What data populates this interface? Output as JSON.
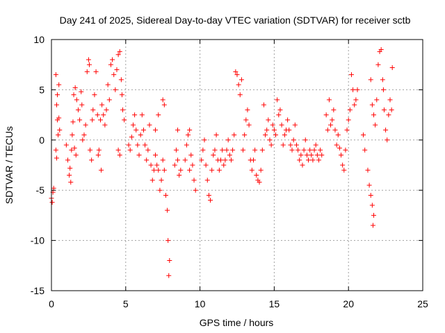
{
  "chart_data": {
    "type": "scatter",
    "title": "Day 241 of 2025, Sidereal Day-to-day VTEC variation (SDTVAR) for receiver sctb",
    "xlabel": "GPS time / hours",
    "ylabel": "SDTVAR / TECUs",
    "xlim": [
      0,
      25
    ],
    "ylim": [
      -15,
      10
    ],
    "xticks": [
      0,
      5,
      10,
      15,
      20,
      25
    ],
    "yticks": [
      10,
      5,
      0,
      -5,
      -10,
      -15
    ],
    "grid": true,
    "marker": "+",
    "colors": {
      "points": "#ff0000",
      "axes": "#000000",
      "grid": "#a0a0a0"
    },
    "series": [
      {
        "name": "SDTVAR",
        "points": [
          [
            0.0,
            -5.8
          ],
          [
            0.05,
            -6.2
          ],
          [
            0.1,
            -5.2
          ],
          [
            0.15,
            -4.8
          ],
          [
            0.3,
            6.5
          ],
          [
            0.35,
            3.5
          ],
          [
            0.4,
            2.0
          ],
          [
            0.45,
            0.5
          ],
          [
            0.5,
            2.2
          ],
          [
            0.55,
            1.0
          ],
          [
            0.3,
            -1.0
          ],
          [
            0.35,
            -1.8
          ],
          [
            0.4,
            4.5
          ],
          [
            0.5,
            5.5
          ],
          [
            1.0,
            -0.5
          ],
          [
            1.1,
            -2.0
          ],
          [
            1.2,
            -3.5
          ],
          [
            1.3,
            -4.2
          ],
          [
            1.25,
            -2.8
          ],
          [
            1.35,
            -1.0
          ],
          [
            1.4,
            0.5
          ],
          [
            1.45,
            1.8
          ],
          [
            1.5,
            4.5
          ],
          [
            1.6,
            5.2
          ],
          [
            1.7,
            4.0
          ],
          [
            1.8,
            3.0
          ],
          [
            1.9,
            2.0
          ],
          [
            2.0,
            4.8
          ],
          [
            2.05,
            3.5
          ],
          [
            1.55,
            -0.8
          ],
          [
            1.65,
            -1.5
          ],
          [
            2.1,
            0.0
          ],
          [
            2.2,
            0.5
          ],
          [
            2.3,
            1.5
          ],
          [
            2.4,
            6.8
          ],
          [
            2.5,
            8.0
          ],
          [
            2.55,
            7.5
          ],
          [
            2.6,
            -1.0
          ],
          [
            2.7,
            -2.0
          ],
          [
            2.75,
            2.0
          ],
          [
            2.8,
            3.0
          ],
          [
            2.9,
            4.5
          ],
          [
            3.0,
            6.8
          ],
          [
            3.1,
            2.5
          ],
          [
            3.15,
            -1.5
          ],
          [
            3.2,
            -1.0
          ],
          [
            3.3,
            2.0
          ],
          [
            3.35,
            -3.0
          ],
          [
            3.4,
            3.5
          ],
          [
            3.5,
            2.5
          ],
          [
            3.6,
            1.5
          ],
          [
            3.7,
            3.0
          ],
          [
            3.8,
            5.5
          ],
          [
            3.9,
            4.0
          ],
          [
            4.0,
            7.5
          ],
          [
            4.1,
            8.0
          ],
          [
            4.2,
            6.5
          ],
          [
            4.3,
            5.0
          ],
          [
            4.4,
            7.0
          ],
          [
            4.5,
            8.5
          ],
          [
            4.6,
            8.8
          ],
          [
            4.7,
            6.0
          ],
          [
            4.75,
            4.5
          ],
          [
            4.8,
            3.0
          ],
          [
            4.9,
            2.0
          ],
          [
            4.6,
            -1.5
          ],
          [
            4.5,
            -1.0
          ],
          [
            5.2,
            -0.5
          ],
          [
            5.3,
            -1.0
          ],
          [
            5.4,
            0.3
          ],
          [
            5.5,
            1.5
          ],
          [
            5.6,
            2.5
          ],
          [
            5.7,
            1.0
          ],
          [
            5.8,
            -0.5
          ],
          [
            5.9,
            -1.5
          ],
          [
            6.0,
            0.5
          ],
          [
            6.1,
            2.5
          ],
          [
            6.2,
            1.0
          ],
          [
            6.3,
            -0.5
          ],
          [
            6.4,
            -2.0
          ],
          [
            6.5,
            -1.0
          ],
          [
            6.6,
            1.5
          ],
          [
            6.7,
            -2.5
          ],
          [
            6.8,
            -4.0
          ],
          [
            6.9,
            -3.0
          ],
          [
            7.0,
            -1.5
          ],
          [
            7.1,
            -2.5
          ],
          [
            7.2,
            -3.0
          ],
          [
            7.3,
            -5.0
          ],
          [
            7.4,
            -4.0
          ],
          [
            7.5,
            -2.0
          ],
          [
            7.6,
            -3.0
          ],
          [
            7.7,
            -5.5
          ],
          [
            7.8,
            -7.0
          ],
          [
            7.85,
            -10.0
          ],
          [
            7.9,
            -13.5
          ],
          [
            7.95,
            -12.0
          ],
          [
            7.5,
            4.0
          ],
          [
            7.6,
            3.5
          ],
          [
            7.0,
            1.0
          ],
          [
            7.2,
            2.5
          ],
          [
            8.3,
            -2.5
          ],
          [
            8.4,
            -1.0
          ],
          [
            8.5,
            -2.0
          ],
          [
            8.6,
            -3.5
          ],
          [
            8.7,
            -3.0
          ],
          [
            8.5,
            1.0
          ],
          [
            9.0,
            -2.0
          ],
          [
            9.1,
            -0.5
          ],
          [
            9.2,
            0.5
          ],
          [
            9.3,
            1.0
          ],
          [
            9.4,
            -1.5
          ],
          [
            9.5,
            -2.5
          ],
          [
            9.6,
            -4.0
          ],
          [
            9.7,
            -5.0
          ],
          [
            9.3,
            -3.0
          ],
          [
            10.1,
            -2.0
          ],
          [
            10.2,
            -1.0
          ],
          [
            10.3,
            0.0
          ],
          [
            10.4,
            -2.5
          ],
          [
            10.5,
            -4.0
          ],
          [
            10.6,
            -5.5
          ],
          [
            10.7,
            -6.0
          ],
          [
            10.8,
            -3.0
          ],
          [
            10.9,
            -1.5
          ],
          [
            11.0,
            -1.0
          ],
          [
            11.1,
            0.5
          ],
          [
            11.2,
            -2.0
          ],
          [
            11.3,
            -3.0
          ],
          [
            11.4,
            -2.0
          ],
          [
            11.5,
            -1.0
          ],
          [
            11.6,
            -2.5
          ],
          [
            11.7,
            -2.0
          ],
          [
            11.8,
            -1.0
          ],
          [
            11.9,
            0.0
          ],
          [
            12.0,
            -1.5
          ],
          [
            12.1,
            -2.0
          ],
          [
            12.2,
            -1.0
          ],
          [
            12.3,
            0.5
          ],
          [
            12.4,
            6.8
          ],
          [
            12.5,
            6.5
          ],
          [
            12.6,
            5.5
          ],
          [
            12.7,
            4.5
          ],
          [
            12.8,
            6.0
          ],
          [
            12.9,
            -1.0
          ],
          [
            13.0,
            0.5
          ],
          [
            13.1,
            2.0
          ],
          [
            13.2,
            3.0
          ],
          [
            13.3,
            1.5
          ],
          [
            13.4,
            -2.0
          ],
          [
            13.5,
            -3.0
          ],
          [
            13.6,
            -2.0
          ],
          [
            13.7,
            -1.0
          ],
          [
            13.8,
            -3.5
          ],
          [
            13.9,
            -4.0
          ],
          [
            14.0,
            -4.2
          ],
          [
            14.1,
            -3.0
          ],
          [
            14.2,
            -1.0
          ],
          [
            14.3,
            3.5
          ],
          [
            14.4,
            0.5
          ],
          [
            14.5,
            1.0
          ],
          [
            14.6,
            2.0
          ],
          [
            14.7,
            0.0
          ],
          [
            14.8,
            -0.5
          ],
          [
            14.9,
            1.5
          ],
          [
            15.0,
            1.0
          ],
          [
            15.1,
            0.5
          ],
          [
            15.2,
            4.0
          ],
          [
            15.3,
            2.5
          ],
          [
            15.4,
            3.0
          ],
          [
            15.5,
            1.5
          ],
          [
            15.6,
            -0.5
          ],
          [
            15.7,
            0.5
          ],
          [
            15.8,
            1.0
          ],
          [
            15.9,
            2.0
          ],
          [
            16.0,
            1.0
          ],
          [
            16.1,
            -0.5
          ],
          [
            16.2,
            -1.0
          ],
          [
            16.3,
            0.0
          ],
          [
            16.4,
            1.5
          ],
          [
            16.5,
            -0.5
          ],
          [
            16.6,
            -1.0
          ],
          [
            16.7,
            -2.0
          ],
          [
            16.8,
            -1.5
          ],
          [
            16.9,
            -2.5
          ],
          [
            17.0,
            -1.0
          ],
          [
            17.1,
            0.0
          ],
          [
            17.2,
            -1.5
          ],
          [
            17.3,
            -2.0
          ],
          [
            17.4,
            -1.0
          ],
          [
            17.5,
            -1.5
          ],
          [
            17.6,
            -2.0
          ],
          [
            17.7,
            -1.0
          ],
          [
            17.8,
            -0.5
          ],
          [
            17.9,
            -1.5
          ],
          [
            18.0,
            -2.0
          ],
          [
            18.1,
            -1.0
          ],
          [
            18.2,
            -1.5
          ],
          [
            18.5,
            2.5
          ],
          [
            18.6,
            1.0
          ],
          [
            18.7,
            4.0
          ],
          [
            18.8,
            1.5
          ],
          [
            18.9,
            2.0
          ],
          [
            19.0,
            3.0
          ],
          [
            19.1,
            1.0
          ],
          [
            19.2,
            -0.5
          ],
          [
            19.3,
            0.5
          ],
          [
            19.4,
            -0.8
          ],
          [
            19.5,
            -1.5
          ],
          [
            19.6,
            -2.5
          ],
          [
            19.7,
            -3.0
          ],
          [
            19.8,
            -1.0
          ],
          [
            19.9,
            1.0
          ],
          [
            20.0,
            2.0
          ],
          [
            20.1,
            3.0
          ],
          [
            20.2,
            6.5
          ],
          [
            20.3,
            5.0
          ],
          [
            20.4,
            3.5
          ],
          [
            20.5,
            4.0
          ],
          [
            20.6,
            5.0
          ],
          [
            21.0,
            0.5
          ],
          [
            21.1,
            -1.0
          ],
          [
            21.3,
            -3.0
          ],
          [
            21.4,
            -4.5
          ],
          [
            21.5,
            -5.5
          ],
          [
            21.6,
            -6.5
          ],
          [
            21.65,
            -8.5
          ],
          [
            21.7,
            -7.5
          ],
          [
            21.5,
            6.0
          ],
          [
            21.6,
            3.5
          ],
          [
            21.7,
            2.5
          ],
          [
            21.8,
            1.5
          ],
          [
            21.9,
            4.0
          ],
          [
            22.0,
            7.5
          ],
          [
            22.1,
            8.8
          ],
          [
            22.2,
            9.0
          ],
          [
            22.3,
            6.0
          ],
          [
            22.35,
            5.0
          ],
          [
            22.4,
            3.0
          ],
          [
            22.5,
            1.0
          ],
          [
            22.6,
            0.0
          ],
          [
            22.7,
            2.5
          ],
          [
            22.8,
            4.0
          ],
          [
            22.9,
            3.0
          ],
          [
            22.95,
            7.2
          ]
        ]
      }
    ]
  }
}
